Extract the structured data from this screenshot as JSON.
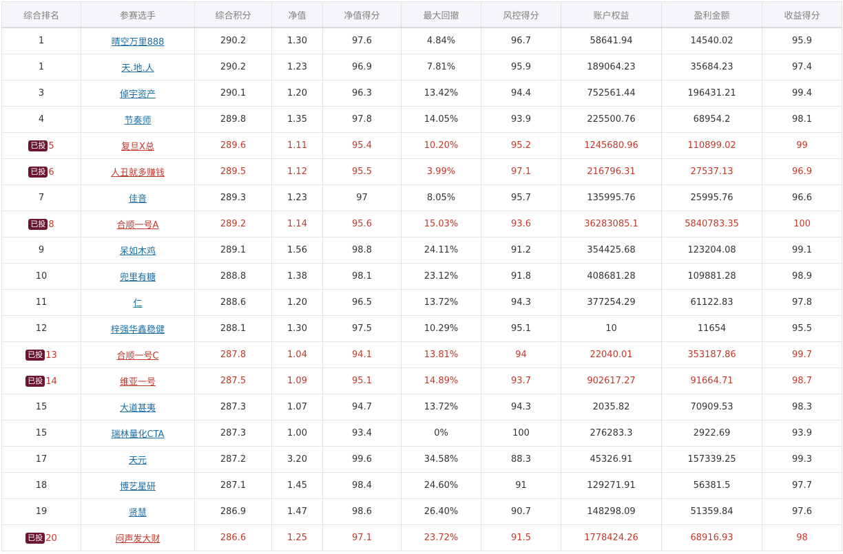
{
  "headers": [
    "综合排名",
    "参赛选手",
    "综合积分",
    "净值",
    "净值得分",
    "最大回撤",
    "风控得分",
    "账户权益",
    "盈利金额",
    "收益得分"
  ],
  "badge_label": "已投",
  "rows": [
    {
      "rank": "1",
      "name": "晴空万里888",
      "score": "290.2",
      "nav": "1.30",
      "nav_score": "97.6",
      "max_dd": "4.84%",
      "risk_score": "96.7",
      "equity": "58641.94",
      "profit": "14540.02",
      "return_score": "95.9",
      "invested": false
    },
    {
      "rank": "1",
      "name": "天.地.人",
      "score": "290.2",
      "nav": "1.23",
      "nav_score": "96.9",
      "max_dd": "7.81%",
      "risk_score": "95.9",
      "equity": "189064.23",
      "profit": "35684.23",
      "return_score": "97.4",
      "invested": false
    },
    {
      "rank": "3",
      "name": "倬宇资产",
      "score": "290.1",
      "nav": "1.20",
      "nav_score": "96.3",
      "max_dd": "13.42%",
      "risk_score": "94.4",
      "equity": "752561.44",
      "profit": "196431.21",
      "return_score": "99.4",
      "invested": false
    },
    {
      "rank": "4",
      "name": "节奏师",
      "score": "289.8",
      "nav": "1.35",
      "nav_score": "97.8",
      "max_dd": "14.05%",
      "risk_score": "93.9",
      "equity": "225500.76",
      "profit": "68954.2",
      "return_score": "98.1",
      "invested": false
    },
    {
      "rank": "5",
      "name": "复旦X总",
      "score": "289.6",
      "nav": "1.11",
      "nav_score": "95.4",
      "max_dd": "10.20%",
      "risk_score": "95.2",
      "equity": "1245680.96",
      "profit": "110899.02",
      "return_score": "99",
      "invested": true
    },
    {
      "rank": "6",
      "name": "人丑就多赚钱",
      "score": "289.5",
      "nav": "1.12",
      "nav_score": "95.5",
      "max_dd": "3.99%",
      "risk_score": "97.1",
      "equity": "216796.31",
      "profit": "27537.13",
      "return_score": "96.9",
      "invested": true
    },
    {
      "rank": "7",
      "name": "佳音",
      "score": "289.3",
      "nav": "1.23",
      "nav_score": "97",
      "max_dd": "8.05%",
      "risk_score": "95.7",
      "equity": "135995.76",
      "profit": "25995.76",
      "return_score": "96.6",
      "invested": false
    },
    {
      "rank": "8",
      "name": "合顺一号A",
      "score": "289.2",
      "nav": "1.14",
      "nav_score": "95.6",
      "max_dd": "15.03%",
      "risk_score": "93.6",
      "equity": "36283085.1",
      "profit": "5840783.35",
      "return_score": "100",
      "invested": true
    },
    {
      "rank": "9",
      "name": "呆如木鸡",
      "score": "289.1",
      "nav": "1.56",
      "nav_score": "98.8",
      "max_dd": "24.11%",
      "risk_score": "91.2",
      "equity": "354425.68",
      "profit": "123204.08",
      "return_score": "99.1",
      "invested": false
    },
    {
      "rank": "10",
      "name": "兜里有糖",
      "score": "288.8",
      "nav": "1.38",
      "nav_score": "98.1",
      "max_dd": "23.12%",
      "risk_score": "91.8",
      "equity": "408681.28",
      "profit": "109881.28",
      "return_score": "98.9",
      "invested": false
    },
    {
      "rank": "11",
      "name": "仁",
      "score": "288.6",
      "nav": "1.20",
      "nav_score": "96.5",
      "max_dd": "13.72%",
      "risk_score": "94.3",
      "equity": "377254.29",
      "profit": "61122.83",
      "return_score": "97.8",
      "invested": false
    },
    {
      "rank": "12",
      "name": "梓强华鑫稳健",
      "score": "288.1",
      "nav": "1.30",
      "nav_score": "97.5",
      "max_dd": "10.29%",
      "risk_score": "95.1",
      "equity": "10",
      "profit": "11654",
      "return_score": "95.5",
      "invested": false
    },
    {
      "rank": "13",
      "name": "合顺一号C",
      "score": "287.8",
      "nav": "1.04",
      "nav_score": "94.1",
      "max_dd": "13.81%",
      "risk_score": "94",
      "equity": "22040.01",
      "profit": "353187.86",
      "return_score": "99.7",
      "invested": true
    },
    {
      "rank": "14",
      "name": "维亚一号",
      "score": "287.5",
      "nav": "1.09",
      "nav_score": "95.1",
      "max_dd": "14.89%",
      "risk_score": "93.7",
      "equity": "902617.27",
      "profit": "91664.71",
      "return_score": "98.7",
      "invested": true
    },
    {
      "rank": "15",
      "name": "大道甚夷",
      "score": "287.3",
      "nav": "1.07",
      "nav_score": "94.7",
      "max_dd": "13.72%",
      "risk_score": "94.3",
      "equity": "2035.82",
      "profit": "70909.53",
      "return_score": "98.3",
      "invested": false
    },
    {
      "rank": "15",
      "name": "瑞林量化CTA",
      "score": "287.3",
      "nav": "1.00",
      "nav_score": "93.4",
      "max_dd": "0%",
      "risk_score": "100",
      "equity": "276283.3",
      "profit": "2922.69",
      "return_score": "93.9",
      "invested": false
    },
    {
      "rank": "17",
      "name": "天元",
      "score": "287.2",
      "nav": "3.20",
      "nav_score": "99.6",
      "max_dd": "34.58%",
      "risk_score": "88.3",
      "equity": "45326.91",
      "profit": "157339.25",
      "return_score": "99.3",
      "invested": false
    },
    {
      "rank": "18",
      "name": "博艺星研",
      "score": "287.1",
      "nav": "1.45",
      "nav_score": "98.4",
      "max_dd": "24.60%",
      "risk_score": "91",
      "equity": "129271.91",
      "profit": "56381.5",
      "return_score": "97.7",
      "invested": false
    },
    {
      "rank": "19",
      "name": "贤慧",
      "score": "286.9",
      "nav": "1.47",
      "nav_score": "98.6",
      "max_dd": "26.40%",
      "risk_score": "90.7",
      "equity": "148298.09",
      "profit": "51359.84",
      "return_score": "97.6",
      "invested": false
    },
    {
      "rank": "20",
      "name": "闷声发大财",
      "score": "286.6",
      "nav": "1.25",
      "nav_score": "97.1",
      "max_dd": "23.72%",
      "risk_score": "91.5",
      "equity": "1778424.26",
      "profit": "68916.93",
      "return_score": "98",
      "invested": true
    }
  ],
  "colors": {
    "header_bg": "#f4f6f9",
    "header_text": "#808080",
    "normal_text": "#333333",
    "link_text": "#1a6fa8",
    "invested_text": "#c0392b",
    "badge_bg": "#6b1630",
    "border": "#e3e3e3"
  }
}
